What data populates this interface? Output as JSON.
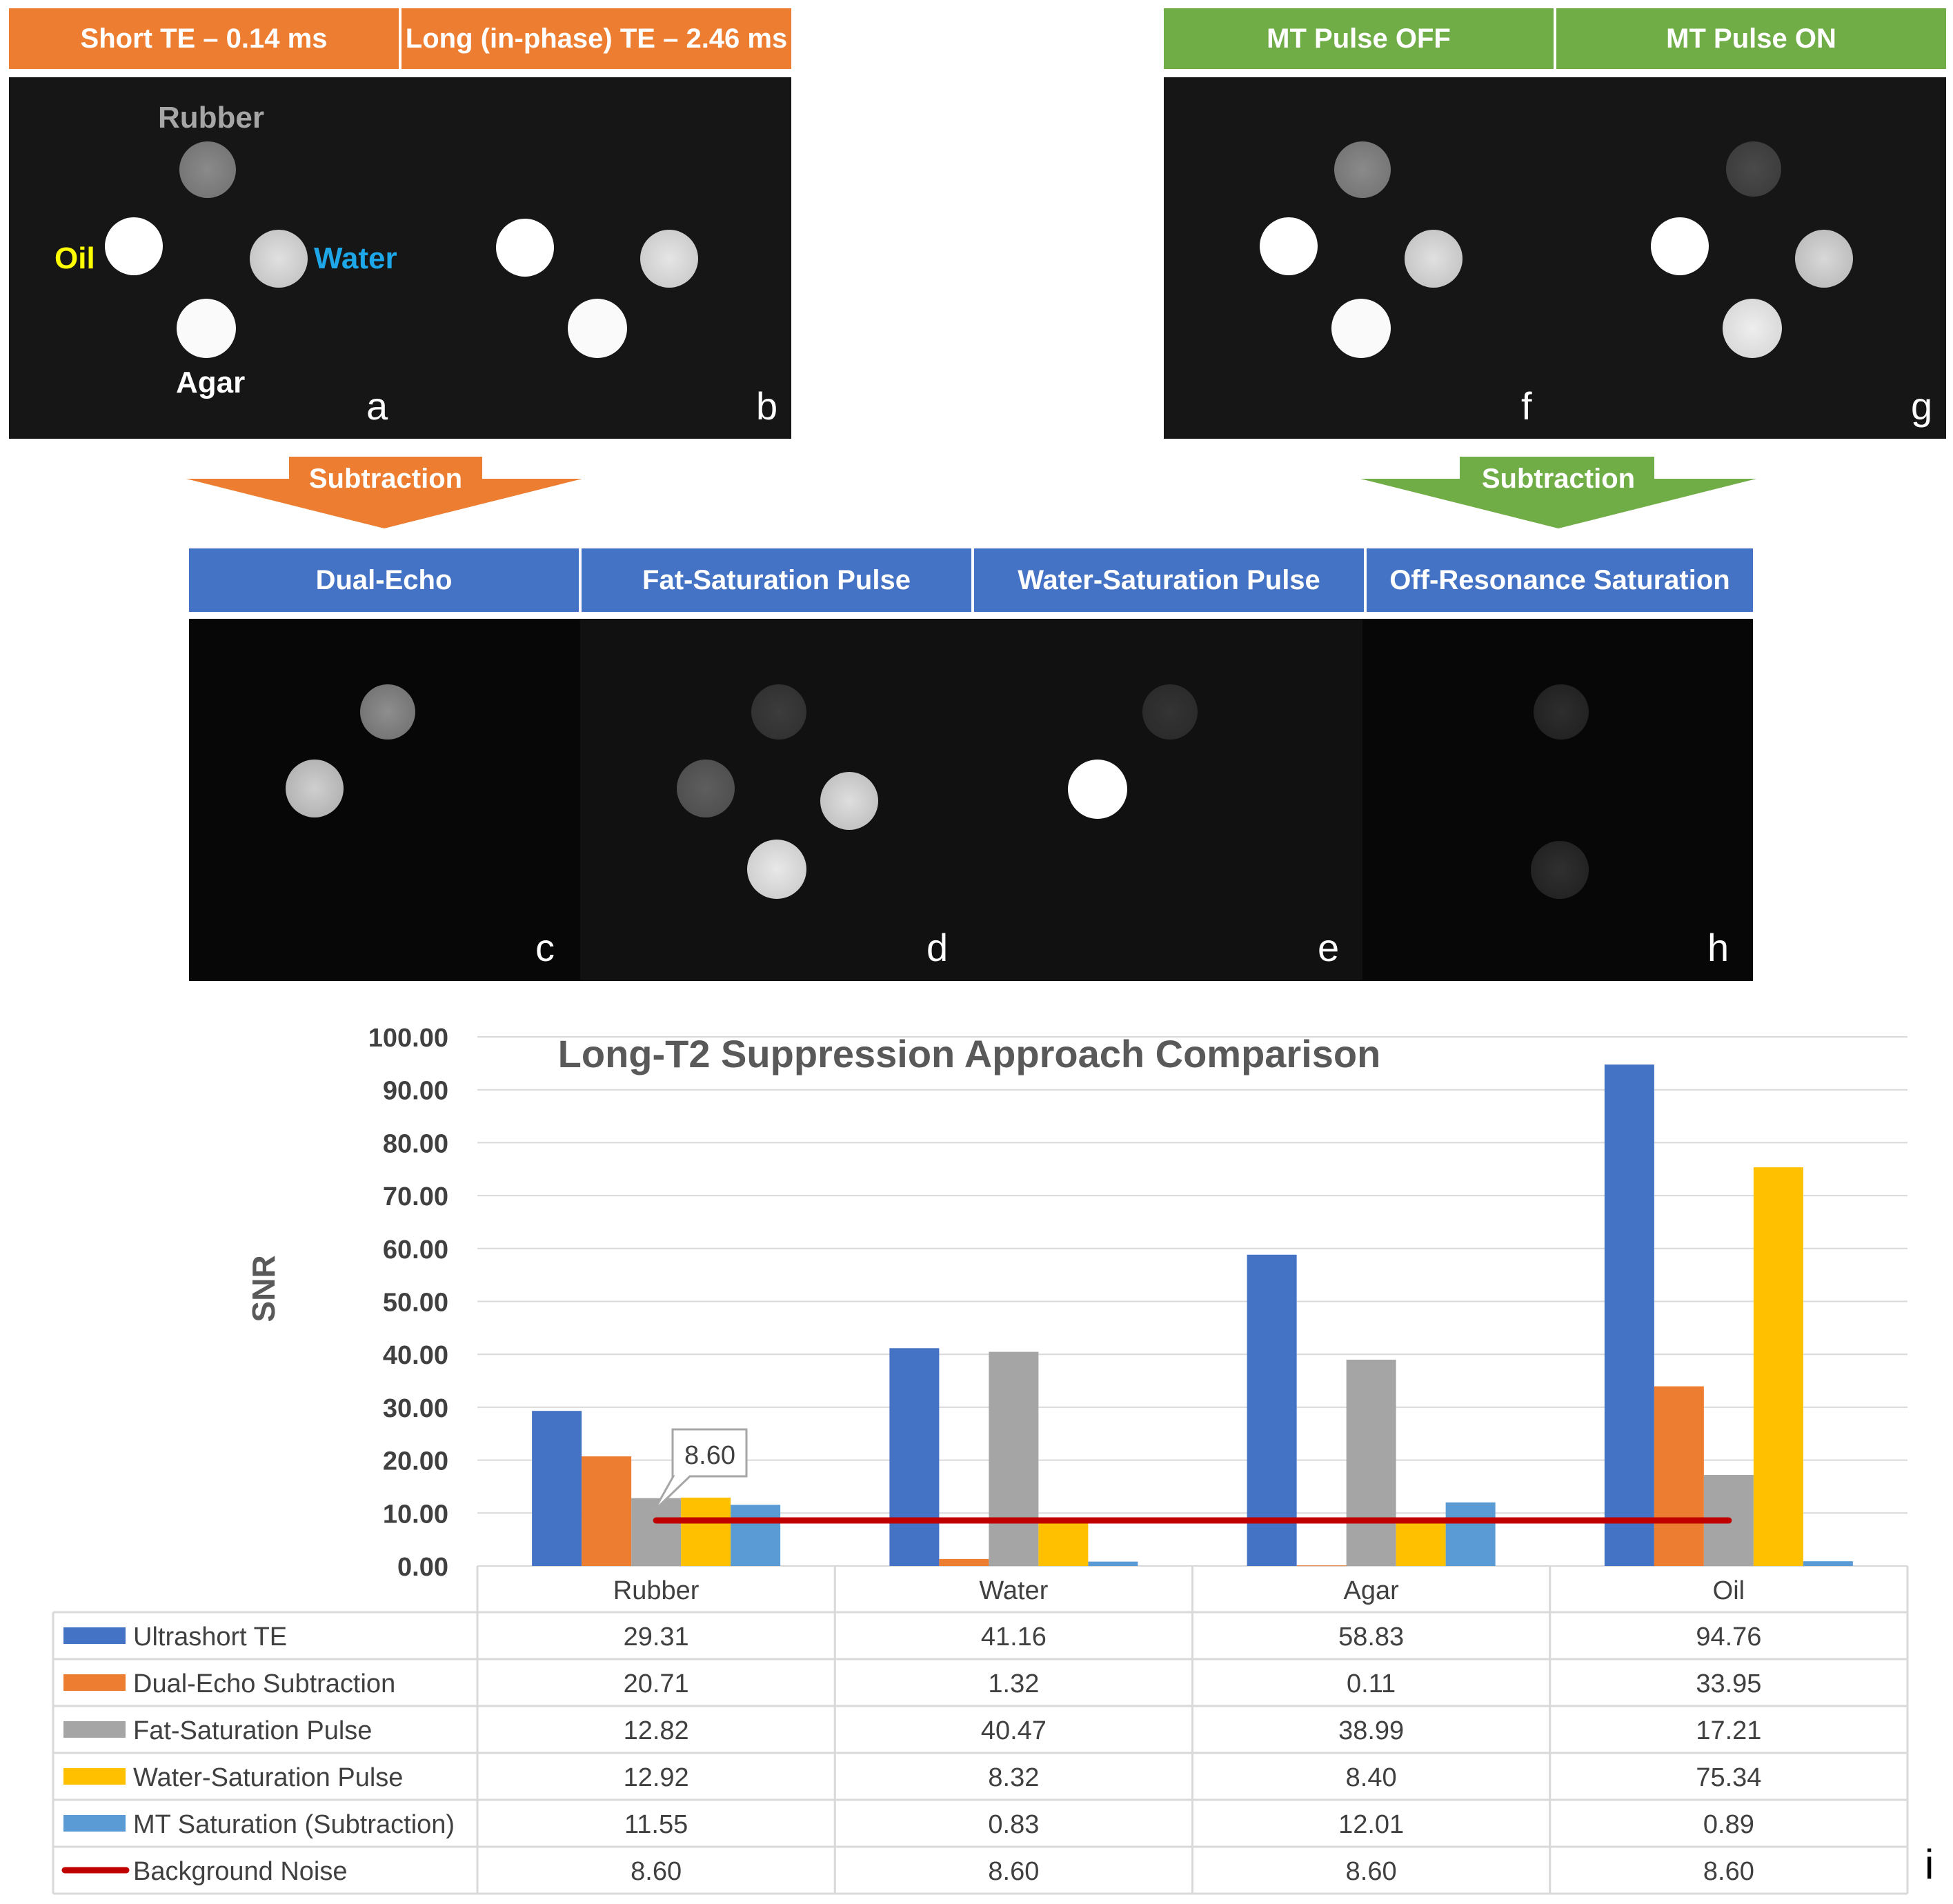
{
  "top_left": {
    "headers": [
      "Short TE – 0.14 ms",
      "Long (in-phase) TE – 2.46 ms"
    ],
    "sample_labels": {
      "rubber": "Rubber",
      "oil": "Oil",
      "water": "Water",
      "agar": "Agar"
    },
    "panel_letters": [
      "a",
      "b"
    ],
    "arrow_label": "Subtraction",
    "colors": {
      "header": "#ed7d31",
      "oil_label": "#ffff00",
      "water_label": "#1ea7e8",
      "rubber_label": "#a6a6a6",
      "agar_label": "#ffffff"
    }
  },
  "top_right": {
    "headers": [
      "MT Pulse OFF",
      "MT Pulse ON"
    ],
    "panel_letters": [
      "f",
      "g"
    ],
    "arrow_label": "Subtraction",
    "colors": {
      "header": "#70ad47"
    }
  },
  "middle": {
    "headers": [
      "Dual-Echo",
      "Fat-Saturation Pulse",
      "Water-Saturation Pulse",
      "Off-Resonance Saturation"
    ],
    "panel_letters": [
      "c",
      "d",
      "e",
      "h"
    ],
    "colors": {
      "header": "#4472c4"
    }
  },
  "figure_letter": "i",
  "chart_data": {
    "type": "bar",
    "title": "Long-T2 Suppression Approach Comparison",
    "xlabel": "",
    "ylabel": "SNR",
    "ylim": [
      0,
      100
    ],
    "yticks": [
      "0.00",
      "10.00",
      "20.00",
      "30.00",
      "40.00",
      "50.00",
      "60.00",
      "70.00",
      "80.00",
      "90.00",
      "100.00"
    ],
    "grid": true,
    "categories": [
      "Rubber",
      "Water",
      "Agar",
      "Oil"
    ],
    "series": [
      {
        "name": "Ultrashort TE",
        "values": [
          29.31,
          41.16,
          58.83,
          94.76
        ],
        "color": "#4472c4",
        "display": [
          "29.31",
          "41.16",
          "58.83",
          "94.76"
        ]
      },
      {
        "name": "Dual-Echo Subtraction",
        "values": [
          20.71,
          1.32,
          0.11,
          33.95
        ],
        "color": "#ed7d31",
        "display": [
          "20.71",
          "1.32",
          "0.11",
          "33.95"
        ]
      },
      {
        "name": "Fat-Saturation Pulse",
        "values": [
          12.82,
          40.47,
          38.99,
          17.21
        ],
        "color": "#a5a5a5",
        "display": [
          "12.82",
          "40.47",
          "38.99",
          "17.21"
        ]
      },
      {
        "name": "Water-Saturation Pulse",
        "values": [
          12.92,
          8.32,
          8.4,
          75.34
        ],
        "color": "#ffc000",
        "display": [
          "12.92",
          "8.32",
          "8.40",
          "75.34"
        ]
      },
      {
        "name": "MT Saturation (Subtraction)",
        "values": [
          11.55,
          0.83,
          12.01,
          0.89
        ],
        "color": "#5b9bd5",
        "display": [
          "11.55",
          "0.83",
          "12.01",
          "0.89"
        ]
      }
    ],
    "line": {
      "name": "Background Noise",
      "value": 8.6,
      "color": "#c00000",
      "display": [
        "8.60",
        "8.60",
        "8.60",
        "8.60"
      ]
    },
    "annotation": "8.60",
    "legend": "data-table-below"
  }
}
